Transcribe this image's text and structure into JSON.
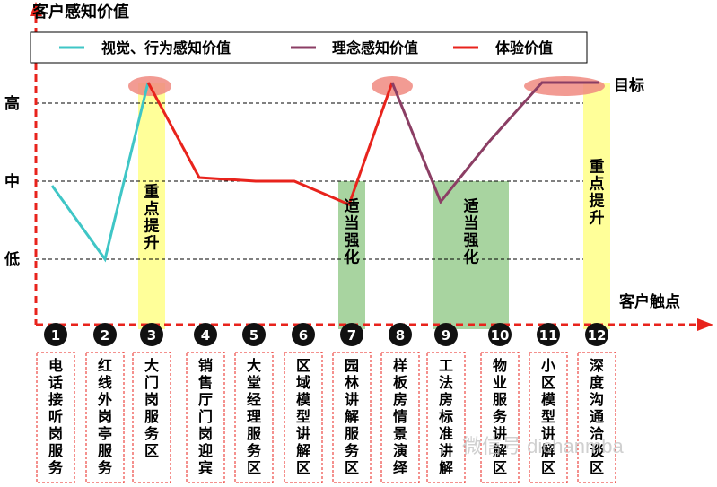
{
  "diagram": {
    "y_axis_label": "客户感知价值",
    "x_axis_label": "客户触点",
    "y_levels": [
      "高",
      "中",
      "低"
    ],
    "target_label": "目标",
    "legend": [
      {
        "label": "视觉、行为感知价值",
        "color": "#3fc6c6"
      },
      {
        "label": "理念感知价值",
        "color": "#8b3e64"
      },
      {
        "label": "体验价值",
        "color": "#e8231c"
      }
    ],
    "highlights": [
      {
        "text": "重点提升",
        "color": "#ffff99"
      },
      {
        "text": "适当强化",
        "color": "#a8d4a0"
      },
      {
        "text": "适当强化",
        "color": "#a8d4a0"
      },
      {
        "text": "重点提升",
        "color": "#ffff99"
      }
    ],
    "touchpoints": [
      {
        "n": "1",
        "label": "电话接听岗服务"
      },
      {
        "n": "2",
        "label": "红线外岗亭服务"
      },
      {
        "n": "3",
        "label": "大门岗服务区"
      },
      {
        "n": "4",
        "label": "销售厅门岗迎宾"
      },
      {
        "n": "5",
        "label": "大堂经理服务区"
      },
      {
        "n": "6",
        "label": "区域模型讲解区"
      },
      {
        "n": "7",
        "label": "园林讲解服务区"
      },
      {
        "n": "8",
        "label": "样板房情景演绎"
      },
      {
        "n": "9",
        "label": "工法房标准讲解"
      },
      {
        "n": "10",
        "label": "物业服务讲解区"
      },
      {
        "n": "11",
        "label": "小区模型讲解区"
      },
      {
        "n": "12",
        "label": "深度沟通洽谈区"
      }
    ],
    "watermark": "微信号 dichanmba"
  }
}
